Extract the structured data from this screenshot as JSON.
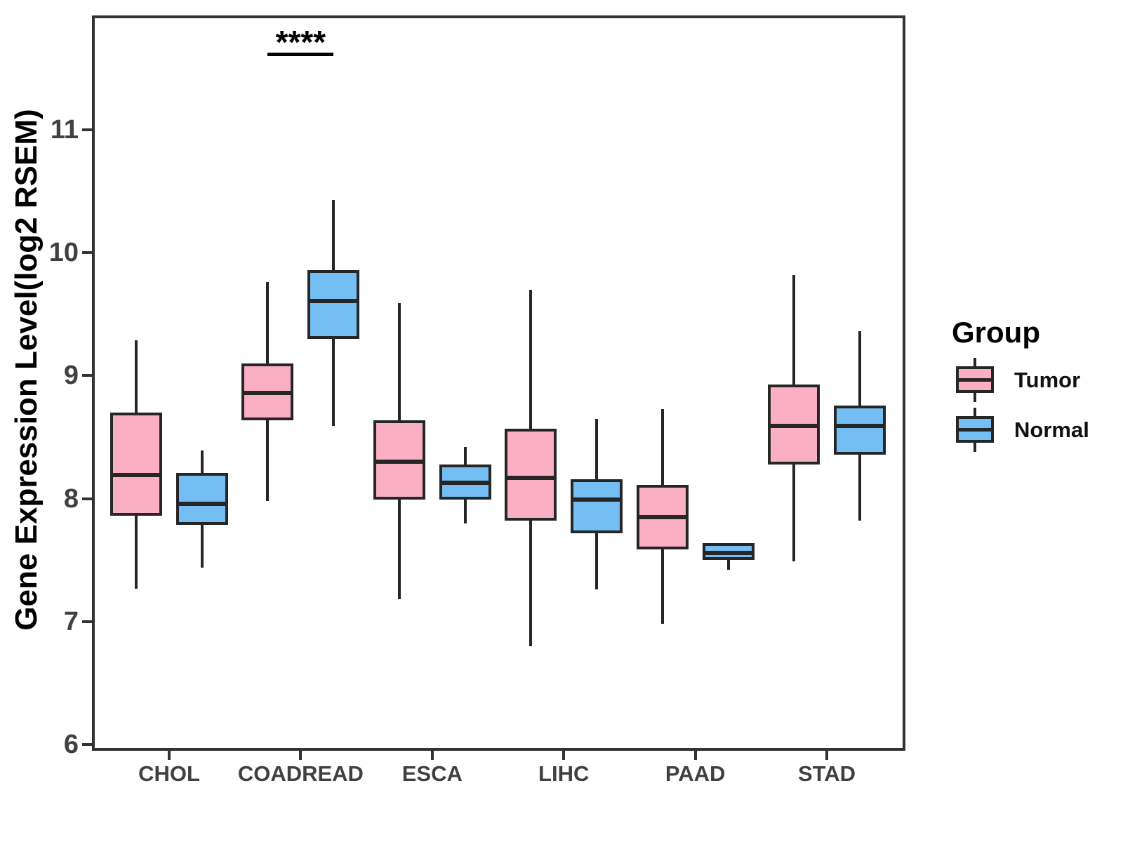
{
  "figure": {
    "y_axis_title": "Gene Expression Level(log2 RSEM)"
  },
  "legend": {
    "title": "Group",
    "items": [
      {
        "label": "Tumor",
        "color": "#FAB0C2"
      },
      {
        "label": "Normal",
        "color": "#74BEF3"
      }
    ]
  },
  "chart_data": {
    "type": "boxplot",
    "title": "",
    "xlabel": "",
    "ylabel": "Gene Expression Level(log2 RSEM)",
    "categories": [
      "CHOL",
      "COADREAD",
      "ESCA",
      "LIHC",
      "PAAD",
      "STAD"
    ],
    "y_ticks": [
      6,
      7,
      8,
      9,
      10,
      11
    ],
    "ylim": [
      5.95,
      11.93
    ],
    "grid": false,
    "legend_position": "right",
    "series": [
      {
        "name": "Tumor",
        "fill": "#FAB0C2",
        "boxes": [
          {
            "whisker_low": 7.27,
            "q1": 7.86,
            "median": 8.19,
            "q3": 8.7,
            "whisker_high": 9.29
          },
          {
            "whisker_low": 7.98,
            "q1": 8.64,
            "median": 8.86,
            "q3": 9.1,
            "whisker_high": 9.76
          },
          {
            "whisker_low": 7.18,
            "q1": 7.99,
            "median": 8.3,
            "q3": 8.64,
            "whisker_high": 9.59
          },
          {
            "whisker_low": 6.8,
            "q1": 7.82,
            "median": 8.17,
            "q3": 8.57,
            "whisker_high": 9.7
          },
          {
            "whisker_low": 6.98,
            "q1": 7.59,
            "median": 7.85,
            "q3": 8.11,
            "whisker_high": 8.73
          },
          {
            "whisker_low": 7.49,
            "q1": 8.28,
            "median": 8.59,
            "q3": 8.93,
            "whisker_high": 9.82
          }
        ]
      },
      {
        "name": "Normal",
        "fill": "#74BEF3",
        "boxes": [
          {
            "whisker_low": 7.44,
            "q1": 7.79,
            "median": 7.96,
            "q3": 8.21,
            "whisker_high": 8.39
          },
          {
            "whisker_low": 8.59,
            "q1": 9.3,
            "median": 9.61,
            "q3": 9.86,
            "whisker_high": 10.43
          },
          {
            "whisker_low": 7.8,
            "q1": 7.99,
            "median": 8.13,
            "q3": 8.28,
            "whisker_high": 8.42
          },
          {
            "whisker_low": 7.26,
            "q1": 7.72,
            "median": 7.99,
            "q3": 8.16,
            "whisker_high": 8.65
          },
          {
            "whisker_low": 7.42,
            "q1": 7.5,
            "median": 7.56,
            "q3": 7.64,
            "whisker_high": 7.64
          },
          {
            "whisker_low": 7.82,
            "q1": 8.36,
            "median": 8.59,
            "q3": 8.76,
            "whisker_high": 9.36
          }
        ]
      }
    ],
    "annotation": {
      "text": "****",
      "category": "COADREAD",
      "category_index": 1,
      "bar_value": 11.63
    }
  },
  "style": {
    "box_border": "#262626",
    "axis_color": "#333333",
    "tick_label_color": "#404040",
    "background": "#FFFFFF"
  }
}
